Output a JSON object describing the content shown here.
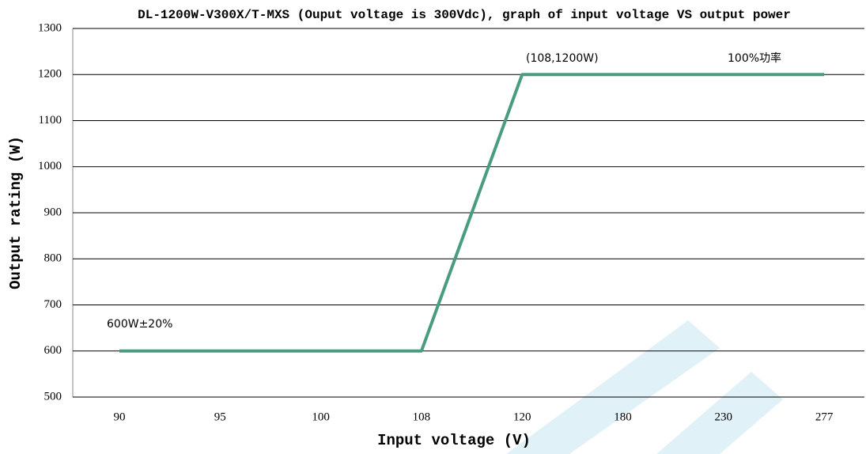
{
  "chart_data": {
    "type": "line",
    "title": "DL-1200W-V300X/T-MXS (Ouput voltage is 300Vdc), graph of input voltage VS output power",
    "x_label": "Input voltage (V)",
    "y_label": "Output rating (W)",
    "categories": [
      "90",
      "95",
      "100",
      "108",
      "120",
      "180",
      "230",
      "277"
    ],
    "series": [
      {
        "name": "Output power",
        "color": "#4a9c7e",
        "values": [
          600,
          600,
          600,
          600,
          1200,
          1200,
          1200,
          1200
        ]
      }
    ],
    "ylim": [
      500,
      1300
    ],
    "yticks": [
      500,
      600,
      700,
      800,
      900,
      1000,
      1100,
      1200,
      1300
    ],
    "grid": true,
    "annotations": [
      {
        "text": "(108,1200W)"
      },
      {
        "text": "100%功率"
      },
      {
        "text": "600W±20%"
      }
    ]
  }
}
